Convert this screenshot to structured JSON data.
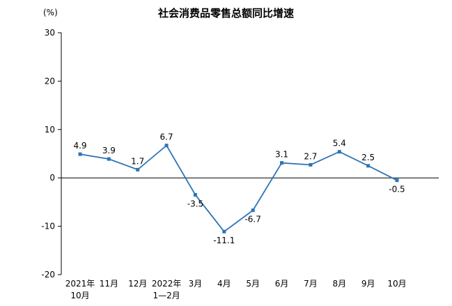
{
  "chart_data": {
    "type": "line",
    "title": "社会消费品零售总额同比增速",
    "ylabel": "(%)",
    "categories": [
      "2021年\n10月",
      "11月",
      "12月",
      "2022年\n1—2月",
      "3月",
      "4月",
      "5月",
      "6月",
      "7月",
      "8月",
      "9月",
      "10月"
    ],
    "values": [
      4.9,
      3.9,
      1.7,
      6.7,
      -3.5,
      -11.1,
      -6.7,
      3.1,
      2.7,
      5.4,
      2.5,
      -0.5
    ],
    "ylim": [
      -20,
      30
    ],
    "yticks": [
      30,
      20,
      10,
      0,
      -10,
      -20
    ],
    "line_color": "#2E74B5",
    "marker": "square",
    "grid": false,
    "legend": "none",
    "xlabel": ""
  }
}
